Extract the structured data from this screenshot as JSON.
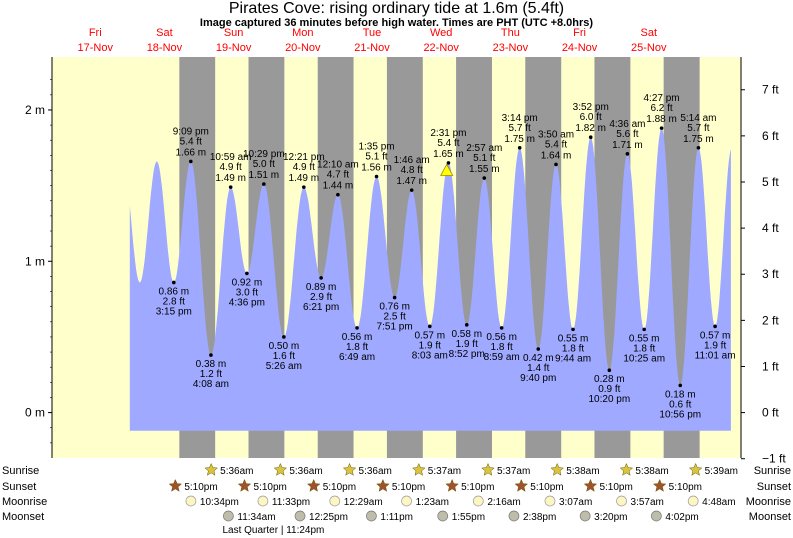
{
  "title": "Pirates Cove: rising  ordinary tide at 1.6m (5.4ft)",
  "subtitle": "Image captured 36 minutes before high water. Times are PHT (UTC +8.0hrs)",
  "days": [
    {
      "dow": "Fri",
      "date": "17-Nov"
    },
    {
      "dow": "Sat",
      "date": "18-Nov"
    },
    {
      "dow": "Sun",
      "date": "19-Nov"
    },
    {
      "dow": "Mon",
      "date": "20-Nov"
    },
    {
      "dow": "Tue",
      "date": "21-Nov"
    },
    {
      "dow": "Wed",
      "date": "22-Nov"
    },
    {
      "dow": "Thu",
      "date": "23-Nov"
    },
    {
      "dow": "Fri",
      "date": "24-Nov"
    },
    {
      "dow": "Sat",
      "date": "25-Nov"
    }
  ],
  "chart_data": {
    "type": "area",
    "title": "Pirates Cove: rising  ordinary tide at 1.6m (5.4ft)",
    "left_axis": {
      "unit": "m",
      "ticks": [
        "0 m",
        "1 m",
        "2 m"
      ],
      "values": [
        0,
        1,
        2
      ]
    },
    "right_axis": {
      "unit": "ft",
      "ticks": [
        "−1 ft",
        "0 ft",
        "1 ft",
        "2 ft",
        "3 ft",
        "4 ft",
        "5 ft",
        "6 ft",
        "7 ft"
      ],
      "values": [
        -1,
        0,
        1,
        2,
        3,
        4,
        5,
        6,
        7
      ]
    },
    "ylim_m": [
      -0.3,
      2.35
    ],
    "xlim_hours_from_start": [
      -27,
      212
    ],
    "tides": [
      {
        "t": 15.25,
        "m": 0.86,
        "ft": 2.8,
        "time": "3:15 pm",
        "type": "low"
      },
      {
        "t": 21.15,
        "m": 1.66,
        "ft": 5.4,
        "time": "9:09 pm",
        "type": "high"
      },
      {
        "t": 28.13,
        "m": 0.38,
        "ft": 1.2,
        "time": "4:08 am",
        "type": "low"
      },
      {
        "t": 34.98,
        "m": 1.49,
        "ft": 4.9,
        "time": "10:59 am",
        "type": "high"
      },
      {
        "t": 40.6,
        "m": 0.92,
        "ft": 3.0,
        "time": "4:36 pm",
        "type": "low"
      },
      {
        "t": 46.48,
        "m": 1.51,
        "ft": 5.0,
        "time": "10:29 pm",
        "type": "high"
      },
      {
        "t": 53.43,
        "m": 0.5,
        "ft": 1.6,
        "time": "5:26 am",
        "type": "low"
      },
      {
        "t": 60.35,
        "m": 1.49,
        "ft": 4.9,
        "time": "12:21 pm",
        "type": "high"
      },
      {
        "t": 66.35,
        "m": 0.89,
        "ft": 2.9,
        "time": "6:21 pm",
        "type": "low"
      },
      {
        "t": 72.17,
        "m": 1.44,
        "ft": 4.7,
        "time": "12:10 am",
        "type": "high"
      },
      {
        "t": 78.82,
        "m": 0.56,
        "ft": 1.8,
        "time": "6:49 am",
        "type": "low"
      },
      {
        "t": 85.58,
        "m": 1.56,
        "ft": 5.1,
        "time": "1:35 pm",
        "type": "high"
      },
      {
        "t": 91.85,
        "m": 0.76,
        "ft": 2.5,
        "time": "7:51 pm",
        "type": "low"
      },
      {
        "t": 97.77,
        "m": 1.47,
        "ft": 4.8,
        "time": "1:46 am",
        "type": "high"
      },
      {
        "t": 104.05,
        "m": 0.57,
        "ft": 1.9,
        "time": "8:03 am",
        "type": "low"
      },
      {
        "t": 110.52,
        "m": 1.65,
        "ft": 5.4,
        "time": "2:31 pm",
        "type": "high"
      },
      {
        "t": 116.87,
        "m": 0.58,
        "ft": 1.9,
        "time": "8:52 pm",
        "type": "low"
      },
      {
        "t": 122.95,
        "m": 1.55,
        "ft": 5.1,
        "time": "2:57 am",
        "type": "high"
      },
      {
        "t": 128.98,
        "m": 0.56,
        "ft": 1.8,
        "time": "8:59 am",
        "type": "low"
      },
      {
        "t": 135.23,
        "m": 1.75,
        "ft": 5.7,
        "time": "3:14 pm",
        "type": "high"
      },
      {
        "t": 141.67,
        "m": 0.42,
        "ft": 1.4,
        "time": "9:40 pm",
        "type": "low"
      },
      {
        "t": 147.83,
        "m": 1.64,
        "ft": 5.4,
        "time": "3:50 am",
        "type": "high"
      },
      {
        "t": 153.73,
        "m": 0.55,
        "ft": 1.8,
        "time": "9:44 am",
        "type": "low"
      },
      {
        "t": 159.87,
        "m": 1.82,
        "ft": 6.0,
        "time": "3:52 pm",
        "type": "high"
      },
      {
        "t": 166.33,
        "m": 0.28,
        "ft": 0.9,
        "time": "10:20 pm",
        "type": "low"
      },
      {
        "t": 172.6,
        "m": 1.71,
        "ft": 5.6,
        "time": "4:36 am",
        "type": "high"
      },
      {
        "t": 178.42,
        "m": 0.55,
        "ft": 1.8,
        "time": "10:25 am",
        "type": "low"
      },
      {
        "t": 184.45,
        "m": 1.88,
        "ft": 6.2,
        "time": "4:27 pm",
        "type": "high"
      },
      {
        "t": 190.93,
        "m": 0.18,
        "ft": 0.6,
        "time": "10:56 pm",
        "type": "low"
      },
      {
        "t": 197.23,
        "m": 1.75,
        "ft": 5.7,
        "time": "5:14 am",
        "type": "high"
      },
      {
        "t": 203.02,
        "m": 0.57,
        "ft": 1.9,
        "time": "11:01 am",
        "type": "low"
      }
    ],
    "current": {
      "t": 109.92,
      "m": 1.6
    }
  },
  "astro": {
    "labels": {
      "sunrise": "Sunrise",
      "sunset": "Sunset",
      "moonrise": "Moonrise",
      "moonset": "Moonset"
    },
    "sunrise": [
      {
        "t": 29.6,
        "time": "5:36am"
      },
      {
        "t": 53.6,
        "time": "5:36am"
      },
      {
        "t": 77.6,
        "time": "5:36am"
      },
      {
        "t": 101.62,
        "time": "5:37am"
      },
      {
        "t": 125.62,
        "time": "5:37am"
      },
      {
        "t": 149.63,
        "time": "5:38am"
      },
      {
        "t": 173.63,
        "time": "5:38am"
      },
      {
        "t": 197.65,
        "time": "5:39am"
      }
    ],
    "sunset": [
      {
        "t": 17.17,
        "time": "5:10pm"
      },
      {
        "t": 41.17,
        "time": "5:10pm"
      },
      {
        "t": 65.17,
        "time": "5:10pm"
      },
      {
        "t": 89.17,
        "time": "5:10pm"
      },
      {
        "t": 113.17,
        "time": "5:10pm"
      },
      {
        "t": 137.17,
        "time": "5:10pm"
      },
      {
        "t": 161.17,
        "time": "5:10pm"
      },
      {
        "t": 185.17,
        "time": "5:10pm"
      }
    ],
    "moonrise": [
      {
        "t": 22.57,
        "time": "10:34pm"
      },
      {
        "t": 47.55,
        "time": "11:33pm"
      },
      {
        "t": 72.48,
        "time": "12:29am"
      },
      {
        "t": 97.38,
        "time": "1:23am"
      },
      {
        "t": 122.27,
        "time": "2:16am"
      },
      {
        "t": 147.12,
        "time": "3:07am"
      },
      {
        "t": 171.95,
        "time": "3:57am"
      },
      {
        "t": 196.8,
        "time": "4:48am"
      }
    ],
    "moonset": [
      {
        "t": 35.57,
        "time": "11:34am"
      },
      {
        "t": 60.42,
        "time": "12:25pm"
      },
      {
        "t": 85.18,
        "time": "1:11pm"
      },
      {
        "t": 109.92,
        "time": "1:55pm"
      },
      {
        "t": 134.63,
        "time": "2:38pm"
      },
      {
        "t": 159.33,
        "time": "3:20pm"
      },
      {
        "t": 184.03,
        "time": "4:02pm"
      }
    ],
    "moon_phase": {
      "t": 47.4,
      "text": "Last Quarter | 11:24pm"
    }
  },
  "colors": {
    "day_bg": "#ffffcc",
    "night_bg": "#999999",
    "water": "#9fa9ff",
    "day_label": "#ff0000",
    "sun_icon": "#d9c441",
    "sunset_icon": "#a0522d",
    "moonrise_icon": "#fdf6c3",
    "moonset_icon": "#bdbdaa"
  }
}
